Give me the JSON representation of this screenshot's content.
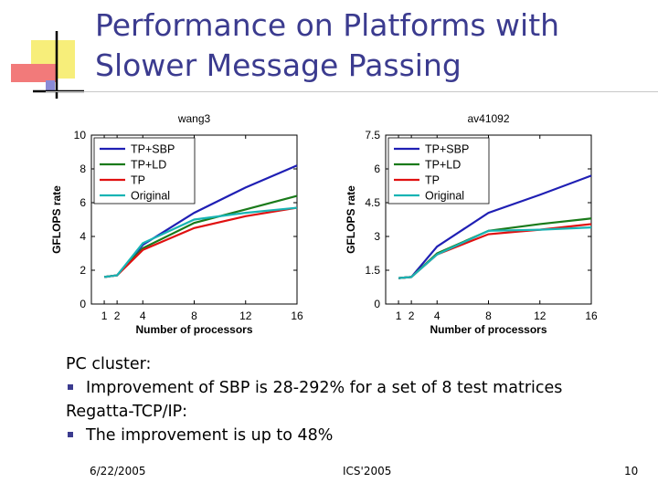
{
  "slide": {
    "title_line1": "Performance on Platforms with",
    "title_line2": "Slower Message Passing",
    "bullets": [
      {
        "text": "PC cluster:",
        "bullet": false
      },
      {
        "text": "Improvement of SBP is 28-292% for a set of 8 test matrices",
        "bullet": true
      },
      {
        "text": "Regatta-TCP/IP:",
        "bullet": false
      },
      {
        "text": "The improvement is up to 48%",
        "bullet": true
      }
    ],
    "footer": {
      "date": "6/22/2005",
      "center": "ICS'2005",
      "page": "10"
    },
    "accent_color": "#3b3b8f"
  },
  "chart_data": [
    {
      "type": "line",
      "title": "wang3",
      "xlabel": "Number of processors",
      "ylabel": "GFLOPS rate",
      "x": [
        1,
        2,
        4,
        8,
        12,
        16
      ],
      "xticks": [
        "1",
        "2",
        "4",
        "8",
        "12",
        "16"
      ],
      "yticks": [
        "0",
        "2",
        "4",
        "6",
        "8",
        "10"
      ],
      "xlim": [
        0,
        16
      ],
      "ylim": [
        0,
        10
      ],
      "legend_position": "top-left",
      "series": [
        {
          "name": "TP+SBP",
          "color": "#1f1fb4",
          "values": [
            1.6,
            1.7,
            3.5,
            5.4,
            6.9,
            8.2
          ]
        },
        {
          "name": "TP+LD",
          "color": "#1a7a1a",
          "values": [
            1.6,
            1.7,
            3.3,
            4.8,
            5.6,
            6.4
          ]
        },
        {
          "name": "TP",
          "color": "#e01010",
          "values": [
            1.6,
            1.7,
            3.2,
            4.5,
            5.2,
            5.7
          ]
        },
        {
          "name": "Original",
          "color": "#18b4b4",
          "values": [
            1.6,
            1.7,
            3.6,
            5.0,
            5.4,
            5.7
          ]
        }
      ]
    },
    {
      "type": "line",
      "title": "av41092",
      "xlabel": "Number of processors",
      "ylabel": "GFLOPS rate",
      "x": [
        1,
        2,
        4,
        8,
        12,
        16
      ],
      "xticks": [
        "1",
        "2",
        "4",
        "8",
        "12",
        "16"
      ],
      "yticks": [
        "0",
        "1.5",
        "3",
        "4.5",
        "6",
        "7.5"
      ],
      "xlim": [
        0,
        16
      ],
      "ylim": [
        0,
        7.5
      ],
      "legend_position": "top-left",
      "series": [
        {
          "name": "TP+SBP",
          "color": "#1f1fb4",
          "values": [
            1.15,
            1.2,
            2.55,
            4.05,
            4.85,
            5.7
          ]
        },
        {
          "name": "TP+LD",
          "color": "#1a7a1a",
          "values": [
            1.15,
            1.2,
            2.25,
            3.25,
            3.55,
            3.8
          ]
        },
        {
          "name": "TP",
          "color": "#e01010",
          "values": [
            1.15,
            1.2,
            2.2,
            3.1,
            3.3,
            3.55
          ]
        },
        {
          "name": "Original",
          "color": "#18b4b4",
          "values": [
            1.15,
            1.2,
            2.2,
            3.25,
            3.3,
            3.4
          ]
        }
      ]
    }
  ]
}
